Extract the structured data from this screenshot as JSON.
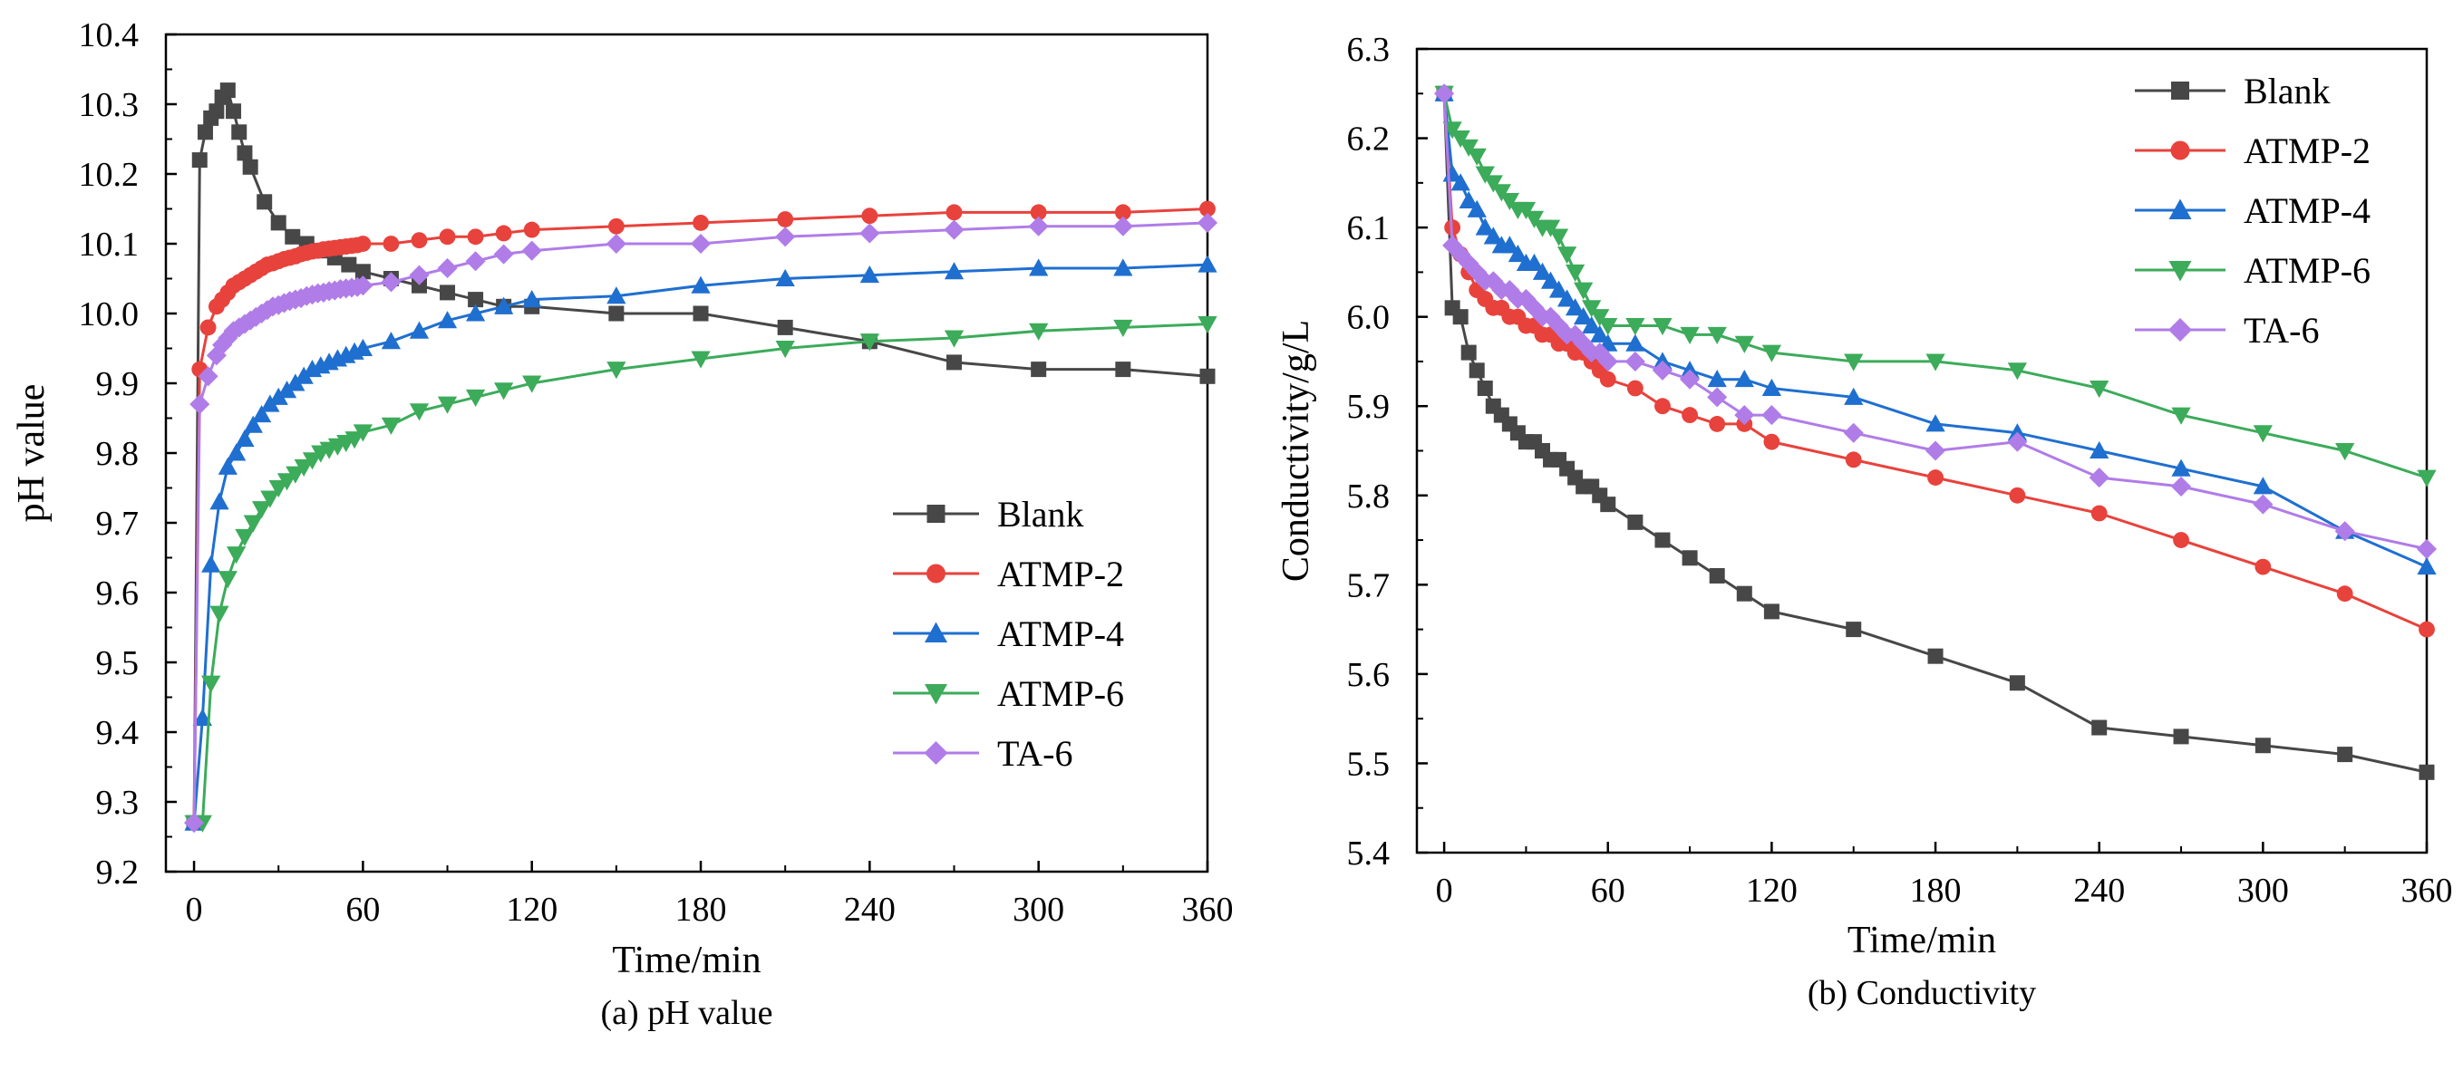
{
  "chart_data": [
    {
      "type": "line",
      "title": "(a) pH value",
      "xlabel": "Time/min",
      "ylabel": "pH value",
      "xlim": [
        -10,
        360
      ],
      "ylim": [
        9.2,
        10.4
      ],
      "xticks": [
        0,
        60,
        120,
        180,
        240,
        300,
        360
      ],
      "yticks": [
        9.2,
        9.3,
        9.4,
        9.5,
        9.6,
        9.7,
        9.8,
        9.9,
        10.0,
        10.1,
        10.2,
        10.3,
        10.4
      ],
      "ytick_labels": [
        "9.2",
        "9.3",
        "9.4",
        "9.5",
        "9.6",
        "9.7",
        "9.8",
        "9.9",
        "10.0",
        "10.1",
        "10.2",
        "10.3",
        "10.4"
      ],
      "legend_position": "lower-right",
      "series": [
        {
          "name": "Blank",
          "color": "#474747",
          "marker": "square",
          "x": [
            0,
            2,
            4,
            6,
            8,
            10,
            12,
            14,
            16,
            18,
            20,
            25,
            30,
            35,
            40,
            45,
            50,
            55,
            60,
            70,
            80,
            90,
            100,
            110,
            120,
            150,
            180,
            210,
            240,
            270,
            300,
            330,
            360
          ],
          "y": [
            9.27,
            10.22,
            10.26,
            10.28,
            10.29,
            10.31,
            10.32,
            10.29,
            10.26,
            10.23,
            10.21,
            10.16,
            10.13,
            10.11,
            10.1,
            10.09,
            10.08,
            10.07,
            10.06,
            10.05,
            10.04,
            10.03,
            10.02,
            10.01,
            10.01,
            10.0,
            10.0,
            9.98,
            9.96,
            9.93,
            9.92,
            9.92,
            9.91
          ]
        },
        {
          "name": "ATMP-2",
          "color": "#e8423c",
          "marker": "circle",
          "x": [
            0,
            2,
            5,
            8,
            10,
            12,
            14,
            16,
            18,
            20,
            22,
            24,
            26,
            28,
            30,
            32,
            34,
            36,
            38,
            40,
            42,
            44,
            46,
            48,
            50,
            52,
            54,
            56,
            58,
            60,
            70,
            80,
            90,
            100,
            110,
            120,
            150,
            180,
            210,
            240,
            270,
            300,
            330,
            360
          ],
          "y": [
            9.27,
            9.92,
            9.98,
            10.01,
            10.02,
            10.03,
            10.04,
            10.045,
            10.05,
            10.055,
            10.06,
            10.065,
            10.07,
            10.072,
            10.075,
            10.078,
            10.08,
            10.082,
            10.085,
            10.087,
            10.089,
            10.09,
            10.092,
            10.093,
            10.094,
            10.095,
            10.096,
            10.097,
            10.098,
            10.1,
            10.1,
            10.105,
            10.11,
            10.11,
            10.115,
            10.12,
            10.125,
            10.13,
            10.135,
            10.14,
            10.145,
            10.145,
            10.145,
            10.15
          ]
        },
        {
          "name": "ATMP-4",
          "color": "#1f6fd0",
          "marker": "triangle-up",
          "x": [
            0,
            3,
            6,
            9,
            12,
            15,
            18,
            21,
            24,
            27,
            30,
            33,
            36,
            39,
            42,
            45,
            48,
            51,
            54,
            57,
            60,
            70,
            80,
            90,
            100,
            110,
            120,
            150,
            180,
            210,
            240,
            270,
            300,
            330,
            360
          ],
          "y": [
            9.27,
            9.42,
            9.64,
            9.73,
            9.78,
            9.8,
            9.82,
            9.84,
            9.855,
            9.87,
            9.88,
            9.89,
            9.9,
            9.91,
            9.92,
            9.925,
            9.93,
            9.935,
            9.94,
            9.945,
            9.95,
            9.96,
            9.975,
            9.99,
            10.0,
            10.01,
            10.02,
            10.025,
            10.04,
            10.05,
            10.055,
            10.06,
            10.065,
            10.065,
            10.07
          ]
        },
        {
          "name": "ATMP-6",
          "color": "#3cab5a",
          "marker": "triangle-down",
          "x": [
            0,
            3,
            6,
            9,
            12,
            15,
            18,
            21,
            24,
            27,
            30,
            33,
            36,
            39,
            42,
            45,
            48,
            51,
            54,
            57,
            60,
            70,
            80,
            90,
            100,
            110,
            120,
            150,
            180,
            210,
            240,
            270,
            300,
            330,
            360
          ],
          "y": [
            9.27,
            9.27,
            9.47,
            9.57,
            9.62,
            9.655,
            9.68,
            9.7,
            9.72,
            9.735,
            9.75,
            9.76,
            9.77,
            9.78,
            9.79,
            9.8,
            9.805,
            9.81,
            9.815,
            9.82,
            9.83,
            9.84,
            9.86,
            9.87,
            9.88,
            9.89,
            9.9,
            9.92,
            9.935,
            9.95,
            9.96,
            9.965,
            9.975,
            9.98,
            9.985
          ]
        },
        {
          "name": "TA-6",
          "color": "#b07ce8",
          "marker": "diamond",
          "x": [
            0,
            2,
            5,
            8,
            10,
            12,
            14,
            16,
            18,
            20,
            22,
            24,
            26,
            28,
            30,
            32,
            34,
            36,
            38,
            40,
            42,
            44,
            46,
            48,
            50,
            52,
            54,
            56,
            58,
            60,
            70,
            80,
            90,
            100,
            110,
            120,
            150,
            180,
            210,
            240,
            270,
            300,
            330,
            360
          ],
          "y": [
            9.27,
            9.87,
            9.91,
            9.94,
            9.955,
            9.965,
            9.975,
            9.98,
            9.985,
            9.99,
            9.995,
            10.0,
            10.005,
            10.01,
            10.012,
            10.015,
            10.018,
            10.02,
            10.022,
            10.025,
            10.027,
            10.029,
            10.03,
            10.032,
            10.033,
            10.035,
            10.036,
            10.037,
            10.038,
            10.04,
            10.045,
            10.055,
            10.065,
            10.075,
            10.085,
            10.09,
            10.1,
            10.1,
            10.11,
            10.115,
            10.12,
            10.125,
            10.125,
            10.13
          ]
        }
      ]
    },
    {
      "type": "line",
      "title": "(b) Conductivity",
      "xlabel": "Time/min",
      "ylabel": "Conductivity/g/L",
      "xlim": [
        -10,
        360
      ],
      "ylim": [
        5.4,
        6.3
      ],
      "xticks": [
        0,
        60,
        120,
        180,
        240,
        300,
        360
      ],
      "yticks": [
        5.4,
        5.5,
        5.6,
        5.7,
        5.8,
        5.9,
        6.0,
        6.1,
        6.2,
        6.3
      ],
      "ytick_labels": [
        "5.4",
        "5.5",
        "5.6",
        "5.7",
        "5.8",
        "5.9",
        "6.0",
        "6.1",
        "6.2",
        "6.3"
      ],
      "legend_position": "top-right",
      "series": [
        {
          "name": "Blank",
          "color": "#474747",
          "marker": "square",
          "x": [
            0,
            3,
            6,
            9,
            12,
            15,
            18,
            21,
            24,
            27,
            30,
            33,
            36,
            39,
            42,
            45,
            48,
            51,
            54,
            57,
            60,
            70,
            80,
            90,
            100,
            110,
            120,
            150,
            180,
            210,
            240,
            270,
            300,
            330,
            360
          ],
          "y": [
            6.25,
            6.01,
            6.0,
            5.96,
            5.94,
            5.92,
            5.9,
            5.89,
            5.88,
            5.87,
            5.86,
            5.86,
            5.85,
            5.84,
            5.84,
            5.83,
            5.82,
            5.81,
            5.81,
            5.8,
            5.79,
            5.77,
            5.75,
            5.73,
            5.71,
            5.69,
            5.67,
            5.65,
            5.62,
            5.59,
            5.54,
            5.53,
            5.52,
            5.51,
            5.49
          ]
        },
        {
          "name": "ATMP-2",
          "color": "#e8423c",
          "marker": "circle",
          "x": [
            0,
            3,
            6,
            9,
            12,
            15,
            18,
            21,
            24,
            27,
            30,
            33,
            36,
            39,
            42,
            45,
            48,
            51,
            54,
            57,
            60,
            70,
            80,
            90,
            100,
            110,
            120,
            150,
            180,
            210,
            240,
            270,
            300,
            330,
            360
          ],
          "y": [
            6.25,
            6.1,
            6.07,
            6.05,
            6.03,
            6.02,
            6.01,
            6.01,
            6.0,
            6.0,
            5.99,
            5.99,
            5.98,
            5.98,
            5.97,
            5.97,
            5.96,
            5.96,
            5.95,
            5.94,
            5.93,
            5.92,
            5.9,
            5.89,
            5.88,
            5.88,
            5.86,
            5.84,
            5.82,
            5.8,
            5.78,
            5.75,
            5.72,
            5.69,
            5.65
          ]
        },
        {
          "name": "ATMP-4",
          "color": "#1f6fd0",
          "marker": "triangle-up",
          "x": [
            0,
            3,
            6,
            9,
            12,
            15,
            18,
            21,
            24,
            27,
            30,
            33,
            36,
            39,
            42,
            45,
            48,
            51,
            54,
            57,
            60,
            70,
            80,
            90,
            100,
            110,
            120,
            150,
            180,
            210,
            240,
            270,
            300,
            330,
            360
          ],
          "y": [
            6.25,
            6.16,
            6.15,
            6.13,
            6.12,
            6.1,
            6.09,
            6.08,
            6.08,
            6.07,
            6.06,
            6.06,
            6.05,
            6.04,
            6.03,
            6.02,
            6.01,
            6.0,
            5.99,
            5.98,
            5.97,
            5.97,
            5.95,
            5.94,
            5.93,
            5.93,
            5.92,
            5.91,
            5.88,
            5.87,
            5.85,
            5.83,
            5.81,
            5.76,
            5.72
          ]
        },
        {
          "name": "ATMP-6",
          "color": "#3cab5a",
          "marker": "triangle-down",
          "x": [
            0,
            3,
            6,
            9,
            12,
            15,
            18,
            21,
            24,
            27,
            30,
            33,
            36,
            39,
            42,
            45,
            48,
            51,
            54,
            57,
            60,
            70,
            80,
            90,
            100,
            110,
            120,
            150,
            180,
            210,
            240,
            270,
            300,
            330,
            360
          ],
          "y": [
            6.25,
            6.21,
            6.2,
            6.19,
            6.18,
            6.16,
            6.15,
            6.14,
            6.13,
            6.12,
            6.12,
            6.11,
            6.1,
            6.1,
            6.09,
            6.07,
            6.05,
            6.03,
            6.01,
            6.0,
            5.99,
            5.99,
            5.99,
            5.98,
            5.98,
            5.97,
            5.96,
            5.95,
            5.95,
            5.94,
            5.92,
            5.89,
            5.87,
            5.85,
            5.82
          ]
        },
        {
          "name": "TA-6",
          "color": "#b07ce8",
          "marker": "diamond",
          "x": [
            0,
            3,
            6,
            9,
            12,
            15,
            18,
            21,
            24,
            27,
            30,
            33,
            36,
            39,
            42,
            45,
            48,
            51,
            54,
            57,
            60,
            70,
            80,
            90,
            100,
            110,
            120,
            150,
            180,
            210,
            240,
            270,
            300,
            330,
            360
          ],
          "y": [
            6.25,
            6.08,
            6.07,
            6.06,
            6.05,
            6.04,
            6.04,
            6.03,
            6.03,
            6.02,
            6.02,
            6.01,
            6.0,
            6.0,
            5.99,
            5.98,
            5.98,
            5.97,
            5.96,
            5.96,
            5.95,
            5.95,
            5.94,
            5.93,
            5.91,
            5.89,
            5.89,
            5.87,
            5.85,
            5.86,
            5.82,
            5.81,
            5.79,
            5.76,
            5.74
          ]
        }
      ]
    }
  ]
}
